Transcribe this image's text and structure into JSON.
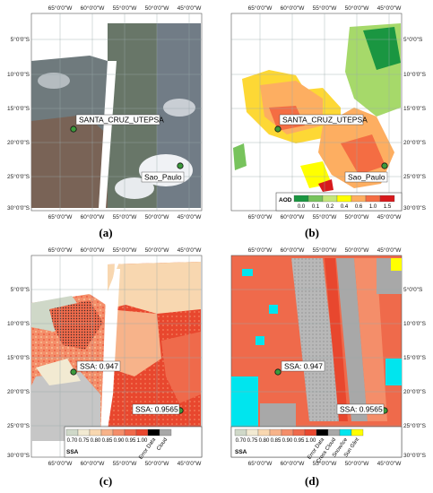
{
  "lon_ticks": [
    "65°0'0\"W",
    "60°0'0\"W",
    "55°0'0\"W",
    "50°0'0\"W",
    "45°0'0\"W"
  ],
  "lat_ticks": [
    "5°0'0\"S",
    "10°0'0\"S",
    "15°0'0\"S",
    "20°0'0\"S",
    "25°0'0\"S",
    "30°0'0\"S"
  ],
  "panels": [
    {
      "label": "(a)",
      "description_type": "true-color satellite RGB",
      "sites": [
        {
          "name": "SANTA_CRUZ_UTEPSA",
          "lon": -63.2,
          "lat": -17.8
        },
        {
          "name": "Sao_Paulo",
          "lon": -46.7,
          "lat": -23.6
        }
      ]
    },
    {
      "label": "(b)",
      "sites": [
        {
          "name": "SANTA_CRUZ_UTEPSA",
          "lon": -63.2,
          "lat": -17.8
        },
        {
          "name": "Sao_Paulo",
          "lon": -46.7,
          "lat": -23.6
        }
      ],
      "legend": {
        "title": "AOD",
        "values": [
          "0.0",
          "0.1",
          "0.2",
          "0.4",
          "0.6",
          "1.0",
          "1.5"
        ],
        "colors": [
          "#1a9641",
          "#77c35c",
          "#c4e67a",
          "#ffff00",
          "#fdae61",
          "#f46d43",
          "#d7191c"
        ]
      }
    },
    {
      "label": "(c)",
      "sites": [
        {
          "name": "SSA: 0.947",
          "lon": -63.2,
          "lat": -17.8
        },
        {
          "name": "SSA: 0.9565",
          "lon": -46.7,
          "lat": -23.6
        }
      ],
      "legend": {
        "title": "SSA",
        "values": [
          "0.70",
          "0.75",
          "0.80",
          "0.85",
          "0.90",
          "0.95",
          "1.00"
        ],
        "extra": [
          "Error Data",
          "Cloud"
        ],
        "colors": [
          "#cfd8c8",
          "#f2ead2",
          "#f8d7b0",
          "#f7b38a",
          "#f48e6a",
          "#ef6a4b",
          "#e8472e",
          "#000000",
          "#a8a8a8"
        ]
      }
    },
    {
      "label": "(d)",
      "sites": [
        {
          "name": "SSA: 0.947",
          "lon": -63.2,
          "lat": -17.8
        },
        {
          "name": "SSA: 0.9565",
          "lon": -46.7,
          "lat": -23.6
        }
      ],
      "legend": {
        "title": "SSA",
        "values": [
          "0.70",
          "0.75",
          "0.80",
          "0.85",
          "0.90",
          "0.95",
          "1.00"
        ],
        "extra": [
          "Error Data",
          "Cross Cloud",
          "Snow/Ice",
          "Sun Glint"
        ],
        "colors": [
          "#cfd8c8",
          "#f2ead2",
          "#f8d7b0",
          "#f7b38a",
          "#f48e6a",
          "#ef6a4b",
          "#e8472e",
          "#000000",
          "#a8a8a8",
          "#00e5ee",
          "#ffff00"
        ]
      }
    }
  ]
}
